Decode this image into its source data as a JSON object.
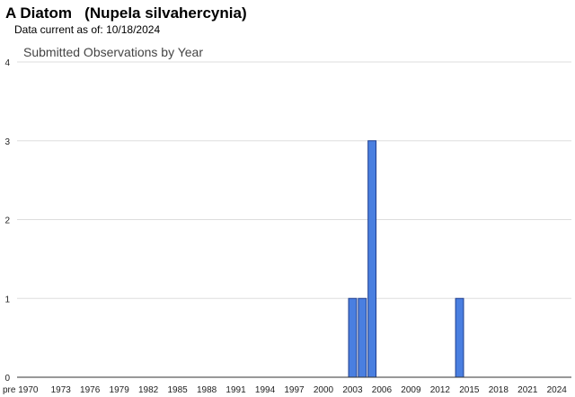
{
  "header": {
    "title": "A Diatom   (Nupela silvahercynia)",
    "data_current_label": "Data current as of:",
    "data_current_date": "10/18/2024"
  },
  "chart_data": {
    "type": "bar",
    "title": "Submitted Observations by Year",
    "xlabel": "",
    "ylabel": "",
    "ylim": [
      0,
      4
    ],
    "yticks": [
      0,
      1,
      2,
      3,
      4
    ],
    "grid": true,
    "bar_color": "#4a7fe0",
    "x_tick_labels": [
      "pre 1970",
      "1973",
      "1976",
      "1979",
      "1982",
      "1985",
      "1988",
      "1991",
      "1994",
      "1997",
      "2000",
      "2003",
      "2006",
      "2009",
      "2012",
      "2015",
      "2018",
      "2021",
      "2024"
    ],
    "categories": [
      "pre 1970",
      "1970",
      "1971",
      "1972",
      "1973",
      "1974",
      "1975",
      "1976",
      "1977",
      "1978",
      "1979",
      "1980",
      "1981",
      "1982",
      "1983",
      "1984",
      "1985",
      "1986",
      "1987",
      "1988",
      "1989",
      "1990",
      "1991",
      "1992",
      "1993",
      "1994",
      "1995",
      "1996",
      "1997",
      "1998",
      "1999",
      "2000",
      "2001",
      "2002",
      "2003",
      "2004",
      "2005",
      "2006",
      "2007",
      "2008",
      "2009",
      "2010",
      "2011",
      "2012",
      "2013",
      "2014",
      "2015",
      "2016",
      "2017",
      "2018",
      "2019",
      "2020",
      "2021",
      "2022",
      "2023",
      "2024",
      "2025"
    ],
    "values": [
      0,
      0,
      0,
      0,
      0,
      0,
      0,
      0,
      0,
      0,
      0,
      0,
      0,
      0,
      0,
      0,
      0,
      0,
      0,
      0,
      0,
      0,
      0,
      0,
      0,
      0,
      0,
      0,
      0,
      0,
      0,
      0,
      0,
      0,
      1,
      1,
      3,
      0,
      0,
      0,
      0,
      0,
      0,
      0,
      0,
      1,
      0,
      0,
      0,
      0,
      0,
      0,
      0,
      0,
      0,
      0,
      0
    ]
  }
}
